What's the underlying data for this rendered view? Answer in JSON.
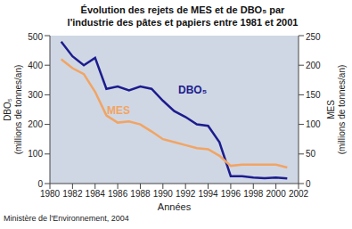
{
  "chart_data": {
    "type": "line",
    "title": "Évolution des rejets de MES et de DBO₅ par l'industrie des pâtes et papiers entre 1981 et 2001",
    "x_label": "Années",
    "y_label": [
      "DBO₅",
      "(millions de tonnes/an)"
    ],
    "y2_label": [
      "MES",
      "(millions de tonnes/an)"
    ],
    "source": "Ministère de l'Environnement, 2004",
    "x": [
      1981,
      1982,
      1983,
      1984,
      1985,
      1986,
      1987,
      1988,
      1989,
      1990,
      1991,
      1992,
      1993,
      1994,
      1995,
      1996,
      1997,
      1998,
      1999,
      2000,
      2001
    ],
    "series": [
      {
        "name": "DBO₅",
        "color": "#1c1c8e",
        "values": [
          480,
          430,
          400,
          425,
          320,
          328,
          315,
          328,
          320,
          280,
          245,
          225,
          200,
          195,
          140,
          25,
          25,
          20,
          18,
          20,
          17
        ]
      },
      {
        "name": "MES",
        "color": "#f2a463",
        "axis": "y2",
        "values": [
          210,
          195,
          185,
          155,
          115,
          103,
          105,
          100,
          88,
          75,
          70,
          65,
          60,
          58,
          47,
          30,
          32,
          32,
          32,
          32,
          27
        ]
      }
    ],
    "xlim": [
      1980,
      2002
    ],
    "xticks": [
      1980,
      1982,
      1984,
      1986,
      1988,
      1990,
      1992,
      1994,
      1996,
      1998,
      2000,
      2002
    ],
    "ylim": [
      0,
      500
    ],
    "yticks": [
      0,
      100,
      200,
      300,
      400,
      500
    ],
    "y2lim": [
      0,
      250
    ],
    "y2ticks": [
      0,
      50,
      100,
      150,
      200,
      250
    ],
    "grid": false
  }
}
